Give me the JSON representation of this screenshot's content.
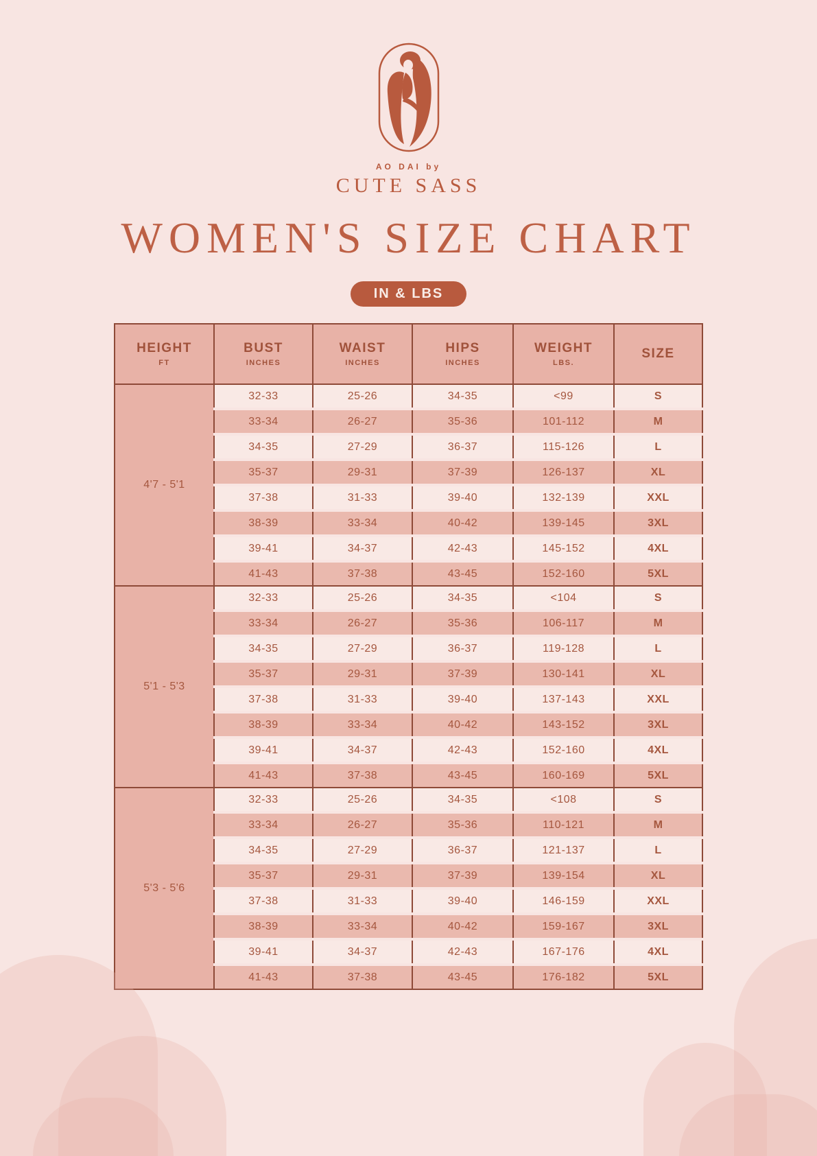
{
  "colors": {
    "background": "#f8e5e2",
    "accent_terracotta": "#b85a3e",
    "table_header_salmon": "#e8b2a7",
    "row_alternate": "#eab9ae",
    "row_light": "#f9e9e5",
    "table_border": "#8e4a38",
    "cell_text": "#a5573f"
  },
  "logo": {
    "icon": "woman-in-ao-dai-icon",
    "tagline": "AO DAI by",
    "brand": "CUTE SASS"
  },
  "title": "WOMEN'S SIZE CHART",
  "badge": "IN & LBS",
  "size_table": {
    "columns": [
      {
        "label": "HEIGHT",
        "sub": "FT"
      },
      {
        "label": "BUST",
        "sub": "INCHES"
      },
      {
        "label": "WAIST",
        "sub": "INCHES"
      },
      {
        "label": "HIPS",
        "sub": "INCHES"
      },
      {
        "label": "WEIGHT",
        "sub": "LBS."
      },
      {
        "label": "SIZE",
        "sub": ""
      }
    ],
    "column_keys": [
      "bust",
      "waist",
      "hips",
      "weight",
      "size"
    ],
    "groups": [
      {
        "height_range": "4'7 - 5'1",
        "rows": [
          [
            "32-33",
            "25-26",
            "34-35",
            "<99",
            "S"
          ],
          [
            "33-34",
            "26-27",
            "35-36",
            "101-112",
            "M"
          ],
          [
            "34-35",
            "27-29",
            "36-37",
            "115-126",
            "L"
          ],
          [
            "35-37",
            "29-31",
            "37-39",
            "126-137",
            "XL"
          ],
          [
            "37-38",
            "31-33",
            "39-40",
            "132-139",
            "XXL"
          ],
          [
            "38-39",
            "33-34",
            "40-42",
            "139-145",
            "3XL"
          ],
          [
            "39-41",
            "34-37",
            "42-43",
            "145-152",
            "4XL"
          ],
          [
            "41-43",
            "37-38",
            "43-45",
            "152-160",
            "5XL"
          ]
        ]
      },
      {
        "height_range": "5'1 - 5'3",
        "rows": [
          [
            "32-33",
            "25-26",
            "34-35",
            "<104",
            "S"
          ],
          [
            "33-34",
            "26-27",
            "35-36",
            "106-117",
            "M"
          ],
          [
            "34-35",
            "27-29",
            "36-37",
            "119-128",
            "L"
          ],
          [
            "35-37",
            "29-31",
            "37-39",
            "130-141",
            "XL"
          ],
          [
            "37-38",
            "31-33",
            "39-40",
            "137-143",
            "XXL"
          ],
          [
            "38-39",
            "33-34",
            "40-42",
            "143-152",
            "3XL"
          ],
          [
            "39-41",
            "34-37",
            "42-43",
            "152-160",
            "4XL"
          ],
          [
            "41-43",
            "37-38",
            "43-45",
            "160-169",
            "5XL"
          ]
        ]
      },
      {
        "height_range": "5'3 - 5'6",
        "rows": [
          [
            "32-33",
            "25-26",
            "34-35",
            "<108",
            "S"
          ],
          [
            "33-34",
            "26-27",
            "35-36",
            "110-121",
            "M"
          ],
          [
            "34-35",
            "27-29",
            "36-37",
            "121-137",
            "L"
          ],
          [
            "35-37",
            "29-31",
            "37-39",
            "139-154",
            "XL"
          ],
          [
            "37-38",
            "31-33",
            "39-40",
            "146-159",
            "XXL"
          ],
          [
            "38-39",
            "33-34",
            "40-42",
            "159-167",
            "3XL"
          ],
          [
            "39-41",
            "34-37",
            "42-43",
            "167-176",
            "4XL"
          ],
          [
            "41-43",
            "37-38",
            "43-45",
            "176-182",
            "5XL"
          ]
        ]
      }
    ]
  }
}
